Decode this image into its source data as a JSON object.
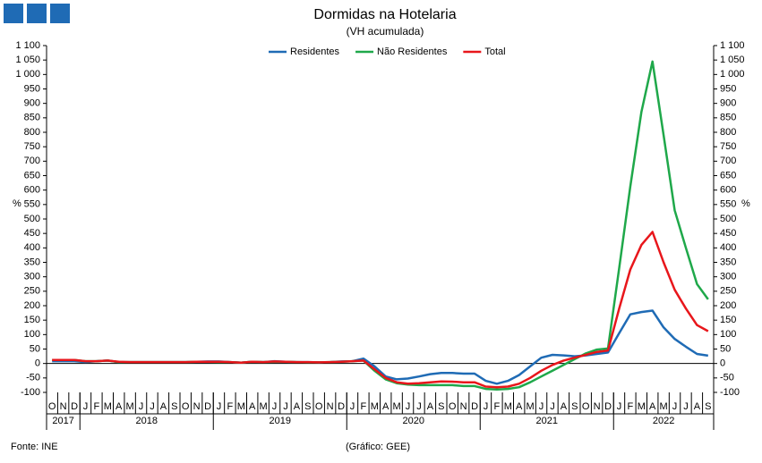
{
  "chart_data": {
    "type": "line",
    "title": "Dormidas na Hotelaria",
    "subtitle": "(VH acumulada)",
    "y_label": "%",
    "categories": [
      "O",
      "N",
      "D",
      "J",
      "F",
      "M",
      "A",
      "M",
      "J",
      "J",
      "A",
      "S",
      "O",
      "N",
      "D",
      "J",
      "F",
      "M",
      "A",
      "M",
      "J",
      "J",
      "A",
      "S",
      "O",
      "N",
      "D",
      "J",
      "F",
      "M",
      "A",
      "M",
      "J",
      "J",
      "A",
      "S",
      "O",
      "N",
      "D",
      "J",
      "F",
      "M",
      "A",
      "M",
      "J",
      "J",
      "A",
      "S",
      "O",
      "N",
      "D",
      "J",
      "F",
      "M",
      "A",
      "M",
      "J",
      "J",
      "A",
      "S"
    ],
    "year_groups": [
      {
        "label": "2017",
        "months": 3
      },
      {
        "label": "2018",
        "months": 12
      },
      {
        "label": "2019",
        "months": 12
      },
      {
        "label": "2020",
        "months": 12
      },
      {
        "label": "2021",
        "months": 12
      },
      {
        "label": "2022",
        "months": 9
      }
    ],
    "series": [
      {
        "name": "Residentes",
        "color": "#1f6bb5",
        "values": [
          8,
          8,
          8,
          5,
          8,
          10,
          5,
          5,
          5,
          5,
          5,
          5,
          5,
          6,
          7,
          7,
          5,
          3,
          6,
          5,
          8,
          6,
          5,
          5,
          4,
          5,
          7,
          8,
          17,
          -10,
          -45,
          -55,
          -52,
          -45,
          -37,
          -33,
          -33,
          -35,
          -35,
          -60,
          -70,
          -60,
          -40,
          -10,
          20,
          30,
          28,
          25,
          28,
          33,
          38,
          105,
          170,
          178,
          183,
          125,
          85,
          58,
          33,
          27
        ]
      },
      {
        "name": "Não Residentes",
        "color": "#1fa84a",
        "values": [
          12,
          12,
          12,
          8,
          8,
          10,
          5,
          5,
          5,
          5,
          5,
          5,
          5,
          6,
          6,
          5,
          5,
          3,
          6,
          5,
          6,
          6,
          5,
          4,
          4,
          5,
          6,
          8,
          10,
          -25,
          -55,
          -68,
          -73,
          -75,
          -75,
          -75,
          -75,
          -78,
          -78,
          -88,
          -90,
          -88,
          -82,
          -65,
          -45,
          -25,
          -5,
          15,
          35,
          48,
          52,
          330,
          612,
          870,
          1045,
          790,
          530,
          400,
          275,
          222
        ]
      },
      {
        "name": "Total",
        "color": "#e8161b",
        "values": [
          12,
          12,
          12,
          8,
          8,
          10,
          6,
          5,
          5,
          5,
          5,
          5,
          5,
          6,
          6,
          6,
          5,
          3,
          6,
          5,
          7,
          6,
          5,
          5,
          4,
          5,
          6,
          8,
          10,
          -20,
          -50,
          -65,
          -70,
          -68,
          -65,
          -62,
          -63,
          -65,
          -65,
          -80,
          -82,
          -80,
          -70,
          -50,
          -25,
          -5,
          10,
          20,
          30,
          40,
          45,
          190,
          325,
          410,
          455,
          350,
          255,
          190,
          133,
          112
        ]
      }
    ],
    "ylim": [
      -100,
      1100
    ],
    "yticks": [
      -100,
      -50,
      0,
      50,
      100,
      150,
      200,
      250,
      300,
      350,
      400,
      450,
      500,
      550,
      600,
      650,
      700,
      750,
      800,
      850,
      900,
      950,
      {
        "value": 1000,
        "label": "1 000"
      },
      {
        "value": 1050,
        "label": "1 050"
      },
      {
        "value": 1100,
        "label": "1 100"
      }
    ],
    "legend": "top",
    "footer_left": "Fonte: INE",
    "footer_center": "(Gráfico: GEE)"
  }
}
